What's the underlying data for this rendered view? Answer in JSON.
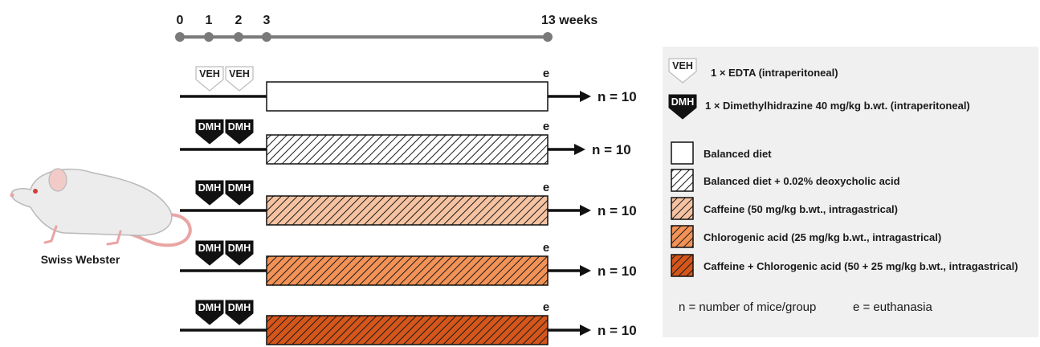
{
  "timeline": {
    "ticks": [
      "0",
      "1",
      "2",
      "3",
      "13 weeks"
    ],
    "tick_weeks": [
      0,
      1,
      2,
      3,
      13
    ]
  },
  "groups": [
    {
      "marker": "VEH",
      "marker_kind": "veh",
      "diet": "balanced",
      "end_label": "e",
      "n_label": "n = 10"
    },
    {
      "marker": "DMH",
      "marker_kind": "dmh",
      "diet": "deoxycholic",
      "end_label": "e",
      "n_label": "n = 10"
    },
    {
      "marker": "DMH",
      "marker_kind": "dmh",
      "diet": "caffeine",
      "end_label": "e",
      "n_label": "n = 10"
    },
    {
      "marker": "DMH",
      "marker_kind": "dmh",
      "diet": "chlorogenic",
      "end_label": "e",
      "n_label": "n = 10"
    },
    {
      "marker": "DMH",
      "marker_kind": "dmh",
      "diet": "combo",
      "end_label": "e",
      "n_label": "n = 10"
    }
  ],
  "mouse": {
    "label": "Swiss Webster"
  },
  "legend": {
    "veh": {
      "badge": "VEH",
      "text": "1 × EDTA (intraperitoneal)"
    },
    "dmh": {
      "badge": "DMH",
      "text": "1 × Dimethylhidrazine 40 mg/kg b.wt. (intraperitoneal)"
    },
    "diets": [
      {
        "key": "balanced",
        "text": "Balanced diet"
      },
      {
        "key": "deoxycholic",
        "text": "Balanced diet + 0.02% deoxycholic acid"
      },
      {
        "key": "caffeine",
        "text": "Caffeine (50 mg/kg b.wt., intragastrical)"
      },
      {
        "key": "chlorogenic",
        "text": "Chlorogenic acid (25 mg/kg b.wt., intragastrical)"
      },
      {
        "key": "combo",
        "text": "Caffeine + Chlorogenic acid (50 + 25 mg/kg b.wt., intragastrical)"
      }
    ],
    "footer_n": "n = number of mice/group",
    "footer_e": "e = euthanasia"
  },
  "colors": {
    "balanced": "#ffffff",
    "deoxycholic": "#ffffff",
    "caffeine": "#f6c3a2",
    "chlorogenic": "#f29256",
    "combo": "#d4561b",
    "hatch": "#1a1a1a",
    "timeline": "#7a7a7a",
    "legend_bg": "#f0f0f0"
  }
}
